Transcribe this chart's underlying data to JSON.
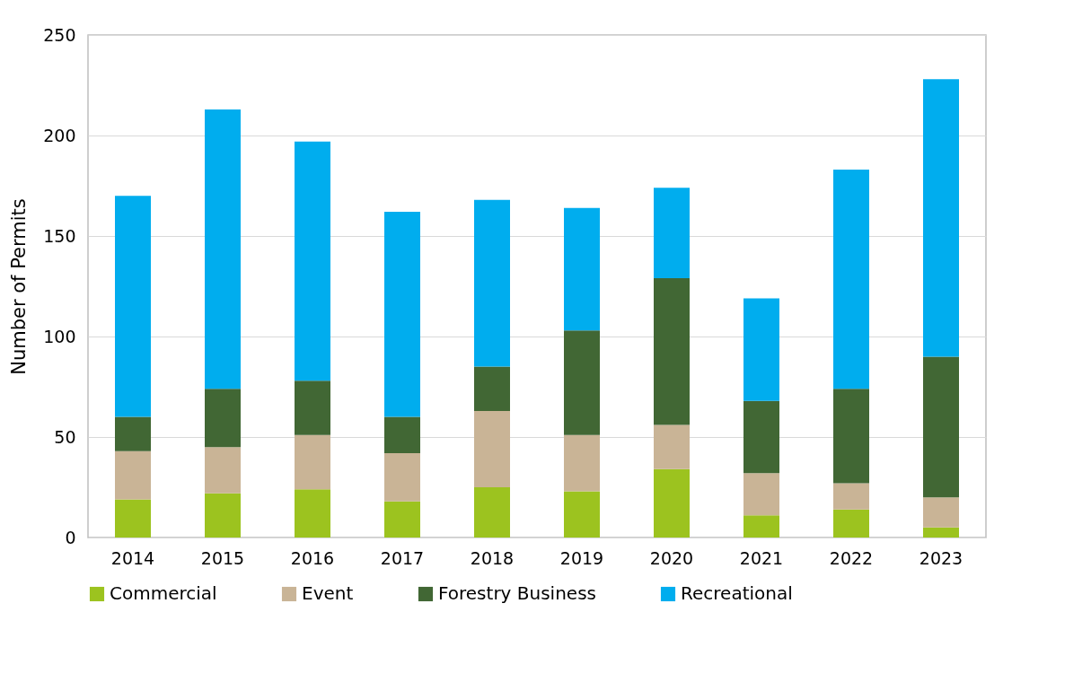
{
  "chart_data": {
    "type": "bar",
    "stacked": true,
    "ylabel": "Number of Permits",
    "categories": [
      "2014",
      "2015",
      "2016",
      "2017",
      "2018",
      "2019",
      "2020",
      "2021",
      "2022",
      "2023"
    ],
    "series": [
      {
        "name": "Commercial",
        "color": "#9cc31f",
        "values": [
          19,
          22,
          24,
          18,
          25,
          23,
          34,
          11,
          14,
          5
        ]
      },
      {
        "name": "Event",
        "color": "#c9b496",
        "values": [
          24,
          23,
          27,
          24,
          38,
          28,
          22,
          21,
          13,
          15
        ]
      },
      {
        "name": "Forestry Business",
        "color": "#416734",
        "values": [
          17,
          29,
          27,
          18,
          22,
          52,
          73,
          36,
          47,
          70
        ]
      },
      {
        "name": "Recreational",
        "color": "#00adee",
        "values": [
          110,
          139,
          119,
          102,
          83,
          61,
          45,
          51,
          109,
          138
        ]
      }
    ],
    "ylim": [
      0,
      250
    ],
    "yticks": [
      0,
      50,
      100,
      150,
      200,
      250
    ],
    "grid": "y",
    "legend": "bottom"
  }
}
